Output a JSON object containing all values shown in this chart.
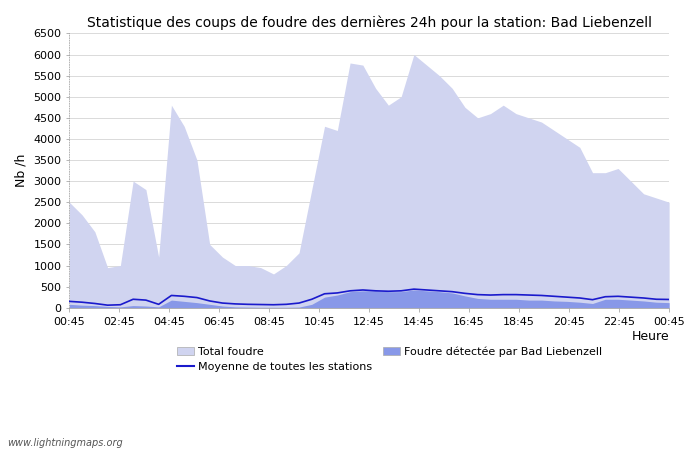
{
  "title": "Statistique des coups de foudre des dernières 24h pour la station: Bad Liebenzell",
  "xlabel": "Heure",
  "ylabel": "Nb /h",
  "ylim": [
    0,
    6500
  ],
  "yticks": [
    0,
    500,
    1000,
    1500,
    2000,
    2500,
    3000,
    3500,
    4000,
    4500,
    5000,
    5500,
    6000,
    6500
  ],
  "xtick_labels": [
    "00:45",
    "02:45",
    "04:45",
    "06:45",
    "08:45",
    "10:45",
    "12:45",
    "14:45",
    "16:45",
    "18:45",
    "20:45",
    "22:45",
    "00:45"
  ],
  "watermark": "www.lightningmaps.org",
  "color_total": "#d0d4f0",
  "color_local": "#8898e8",
  "color_mean": "#1a1acc",
  "total_foudre": [
    2500,
    2200,
    1800,
    950,
    1000,
    3000,
    2800,
    1200,
    4800,
    4300,
    3500,
    1500,
    1200,
    1000,
    1000,
    950,
    800,
    1000,
    1300,
    2800,
    4300,
    4200,
    5800,
    5750,
    5200,
    4800,
    5000,
    6000,
    5750,
    5500,
    5200,
    4750,
    4500,
    4600,
    4800,
    4600,
    4500,
    4400,
    4200,
    4000,
    3800,
    3200,
    3200,
    3300,
    3000,
    2700,
    2600,
    2500
  ],
  "local_foudre": [
    80,
    60,
    50,
    30,
    20,
    50,
    40,
    20,
    180,
    150,
    120,
    80,
    40,
    20,
    15,
    10,
    10,
    10,
    15,
    80,
    250,
    300,
    380,
    400,
    400,
    380,
    380,
    420,
    400,
    380,
    350,
    280,
    220,
    200,
    200,
    200,
    180,
    180,
    160,
    150,
    130,
    100,
    200,
    200,
    180,
    160,
    130,
    120
  ],
  "mean_line": [
    150,
    130,
    100,
    60,
    70,
    200,
    180,
    80,
    290,
    270,
    240,
    160,
    110,
    90,
    80,
    75,
    70,
    80,
    110,
    200,
    330,
    350,
    400,
    420,
    400,
    390,
    400,
    440,
    420,
    400,
    380,
    340,
    310,
    300,
    310,
    310,
    300,
    290,
    270,
    250,
    230,
    190,
    260,
    270,
    250,
    230,
    200,
    195
  ],
  "n_points": 48,
  "figsize": [
    7.0,
    4.5
  ],
  "dpi": 100,
  "title_fontsize": 10,
  "tick_fontsize": 8,
  "label_fontsize": 9,
  "legend_fontsize": 8,
  "background_color": "#ffffff",
  "grid_color": "#cccccc",
  "grid_linestyle": "-",
  "grid_linewidth": 0.5,
  "left_spine_dotted": true
}
